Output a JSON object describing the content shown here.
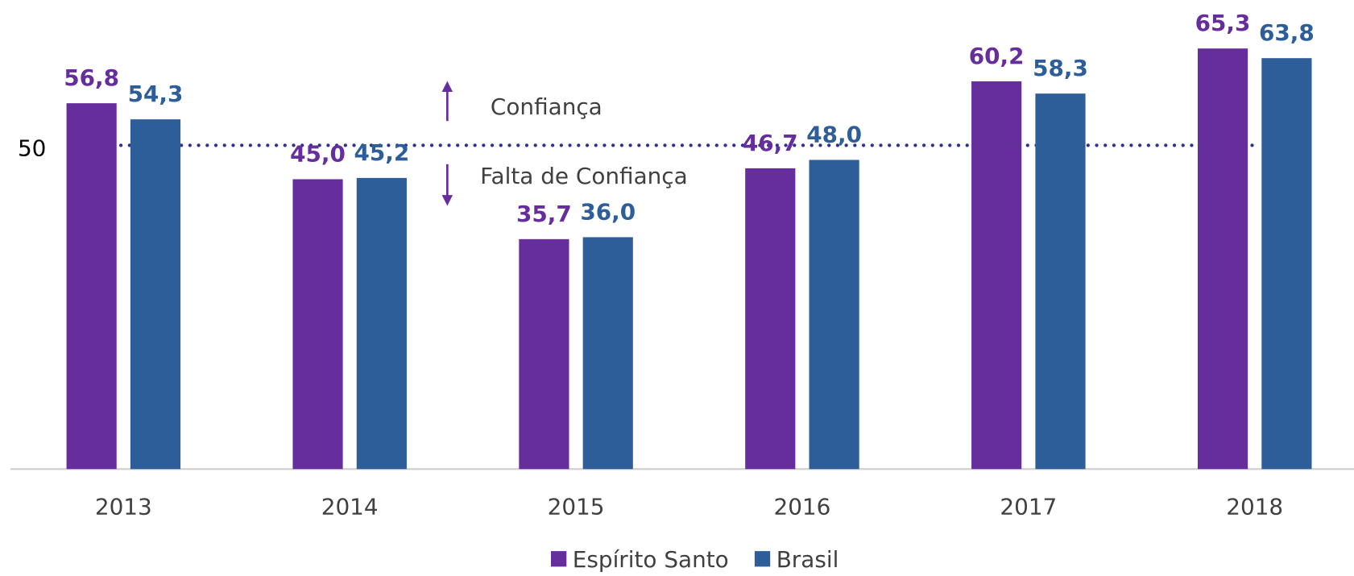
{
  "chart_data": {
    "type": "bar",
    "categories": [
      "2013",
      "2014",
      "2015",
      "2016",
      "2017",
      "2018"
    ],
    "series": [
      {
        "name": "Espírito Santo",
        "color": "#662d9c",
        "values": [
          56.8,
          45.0,
          35.7,
          46.7,
          60.2,
          65.3
        ],
        "value_labels": [
          "56,8",
          "45,0",
          "35,7",
          "46,7",
          "60,2",
          "65,3"
        ]
      },
      {
        "name": "Brasil",
        "color": "#2d5e99",
        "values": [
          54.3,
          45.2,
          36.0,
          48.0,
          58.3,
          63.8
        ],
        "value_labels": [
          "54,3",
          "45,2",
          "36,0",
          "48,0",
          "58,3",
          "63,8"
        ]
      }
    ],
    "ylim": [
      0,
      70
    ],
    "yticks": [
      50
    ],
    "grid": true,
    "grid_color": "#2e3192",
    "annotations": [
      "Confiança",
      "Falta de Confiança"
    ],
    "legend": "bottom"
  }
}
